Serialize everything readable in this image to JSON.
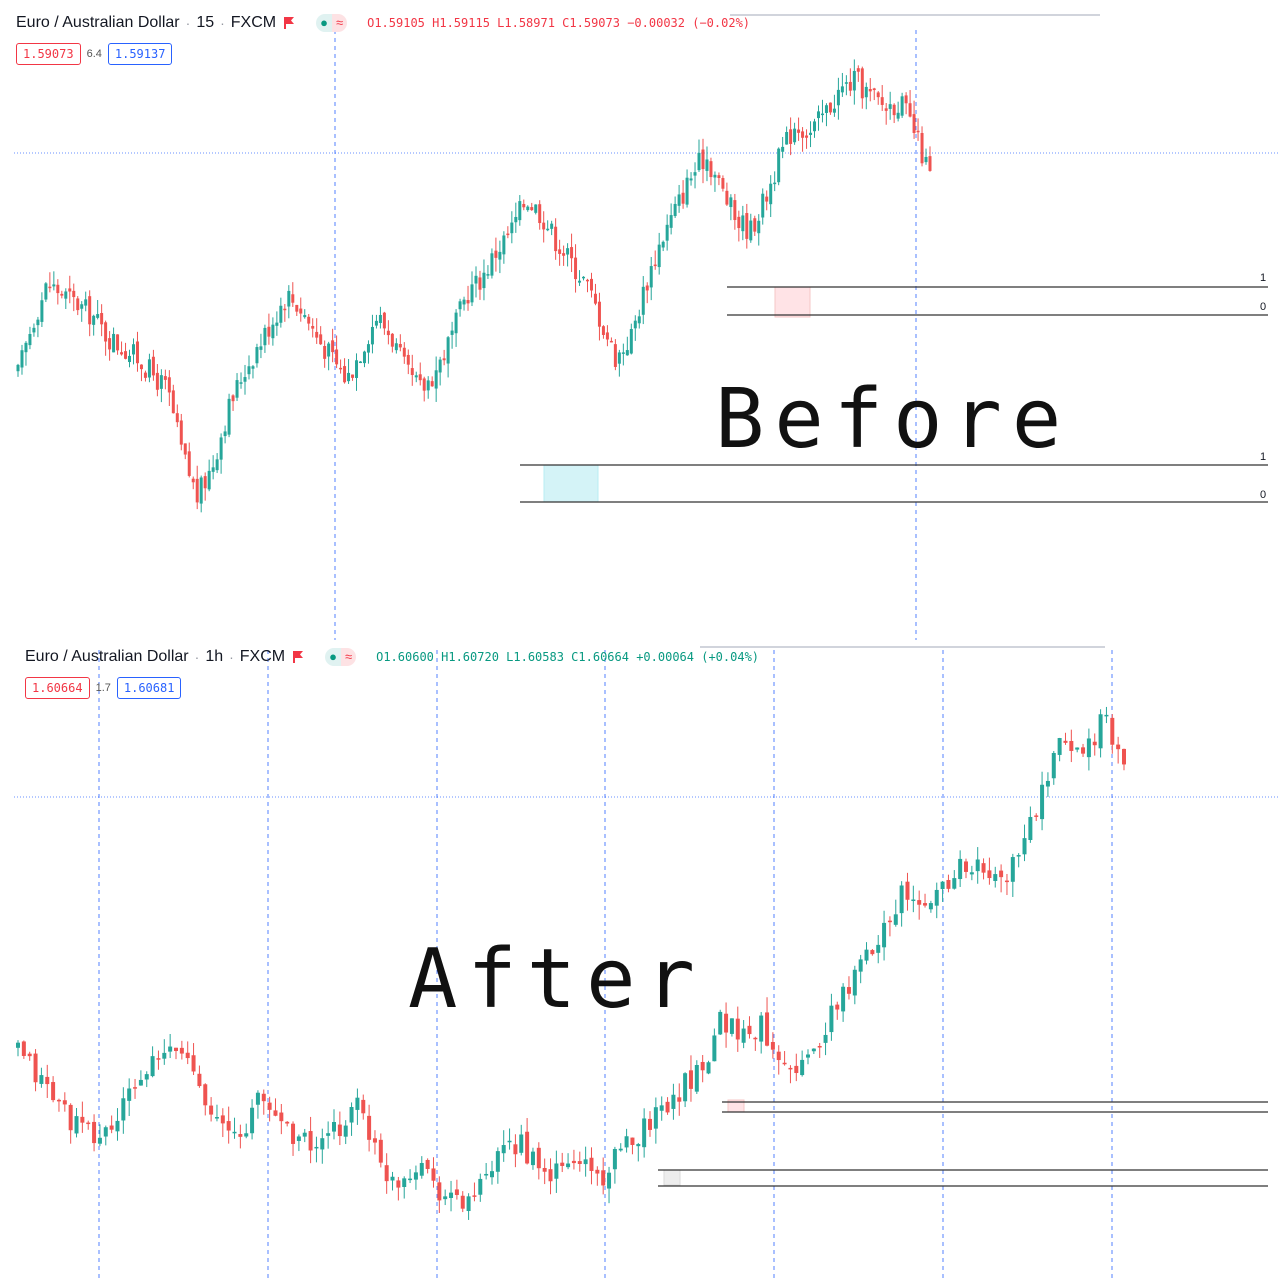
{
  "top_panel": {
    "symbol": "Euro / Australian Dollar",
    "interval": "15",
    "source": "FXCM",
    "ohlc": "O1.59105 H1.59115 L1.58971 C1.59073 −0.00032 (−0.02%)",
    "sell_price": "1.59073",
    "spread": "6.4",
    "buy_price": "1.59137",
    "overlay_label": "Before",
    "level_tags": [
      "1",
      "0",
      "1",
      "0"
    ]
  },
  "bottom_panel": {
    "symbol": "Euro / Australian Dollar",
    "interval": "1h",
    "source": "FXCM",
    "ohlc": "O1.60600 H1.60720 L1.60583 C1.60664 +0.00064 (+0.04%)",
    "sell_price": "1.60664",
    "spread": "1.7",
    "buy_price": "1.60681",
    "overlay_label": "After"
  },
  "colors": {
    "up": "#26a69a",
    "down": "#ef5350",
    "session_line": "#2962ff",
    "price_line": "#2962ff",
    "zone_demand": "#b2ebf2",
    "zone_supply": "#ffcdd2"
  },
  "chart_data": [
    {
      "type": "candlestick",
      "title": "Euro / Australian Dollar · 15 · FXCM",
      "last_close": 1.59073,
      "description_of_trend": "choppy then rising to peak near end, sharp drop on last candles",
      "series": [
        {
          "values": [
            0.45,
            0.55,
            0.62,
            0.6,
            0.58,
            0.56,
            0.52,
            0.5,
            0.48,
            0.45,
            0.42,
            0.3,
            0.22,
            0.28,
            0.38,
            0.45,
            0.5,
            0.55,
            0.6,
            0.57,
            0.52,
            0.48,
            0.44,
            0.5,
            0.56,
            0.52,
            0.45,
            0.42,
            0.46,
            0.52,
            0.6,
            0.63,
            0.68,
            0.72,
            0.78,
            0.75,
            0.7,
            0.66,
            0.62,
            0.55,
            0.48,
            0.52,
            0.62,
            0.7,
            0.76,
            0.82,
            0.86,
            0.8,
            0.74,
            0.72,
            0.78,
            0.86,
            0.92,
            0.9,
            0.94,
            0.98,
            1.0,
            0.97,
            0.95,
            0.96,
            0.9,
            0.82
          ]
        }
      ]
    },
    {
      "type": "candlestick",
      "title": "Euro / Australian Dollar · 1h · FXCM",
      "last_close": 1.60664,
      "description_of_trend": "sideways to down, then strong rally to new high at right",
      "series": [
        {
          "values": [
            0.35,
            0.3,
            0.25,
            0.2,
            0.18,
            0.22,
            0.3,
            0.33,
            0.36,
            0.3,
            0.2,
            0.18,
            0.26,
            0.22,
            0.18,
            0.16,
            0.2,
            0.26,
            0.12,
            0.1,
            0.14,
            0.08,
            0.05,
            0.08,
            0.14,
            0.18,
            0.1,
            0.12,
            0.14,
            0.1,
            0.15,
            0.2,
            0.24,
            0.28,
            0.32,
            0.42,
            0.38,
            0.4,
            0.34,
            0.32,
            0.38,
            0.46,
            0.52,
            0.6,
            0.66,
            0.62,
            0.68,
            0.72,
            0.7,
            0.68,
            0.76,
            0.86,
            0.96,
            0.94,
            1.0,
            0.9
          ]
        }
      ]
    }
  ]
}
